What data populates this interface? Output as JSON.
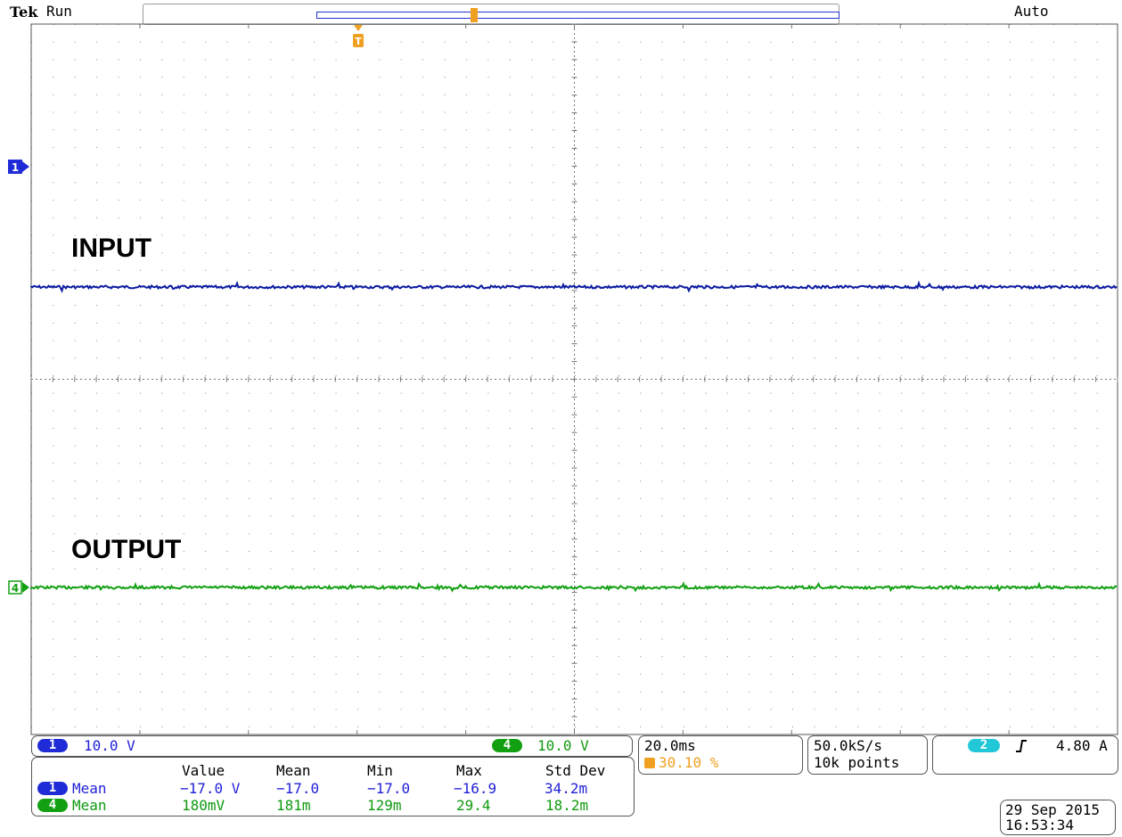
{
  "header": {
    "brand": "Tek",
    "status": "Run",
    "trigger_mode": "Auto"
  },
  "colors": {
    "ch1": "#0a1aa0",
    "ch4": "#12a012",
    "trigger": "#f0a020",
    "grid": "#555555"
  },
  "markers": {
    "ch1": "1",
    "ch4": "4",
    "trigger": "T"
  },
  "labels": {
    "input": "INPUT",
    "output": "OUTPUT"
  },
  "channels": {
    "ch1": {
      "num": "1",
      "scale": "10.0 V"
    },
    "ch4": {
      "num": "4",
      "scale": "10.0 V"
    }
  },
  "timebase": {
    "scale": "20.0ms",
    "trigger_pos": "30.10 %"
  },
  "acquisition": {
    "rate": "50.0kS/s",
    "points": "10k points"
  },
  "trigger": {
    "source": "2",
    "slope_icon": "rising-edge",
    "level": "4.80 A"
  },
  "measurements": {
    "headers": [
      "Value",
      "Mean",
      "Min",
      "Max",
      "Std Dev"
    ],
    "rows": [
      {
        "ch": "1",
        "type": "Mean",
        "values": [
          "−17.0 V",
          "−17.0",
          "−17.0",
          "−16.9",
          "34.2m"
        ]
      },
      {
        "ch": "4",
        "type": "Mean",
        "values": [
          "180mV",
          "181m",
          "129m",
          "29.4",
          "18.2m"
        ]
      }
    ]
  },
  "datetime": {
    "date": "29 Sep  2015",
    "time": "16:53:34"
  }
}
